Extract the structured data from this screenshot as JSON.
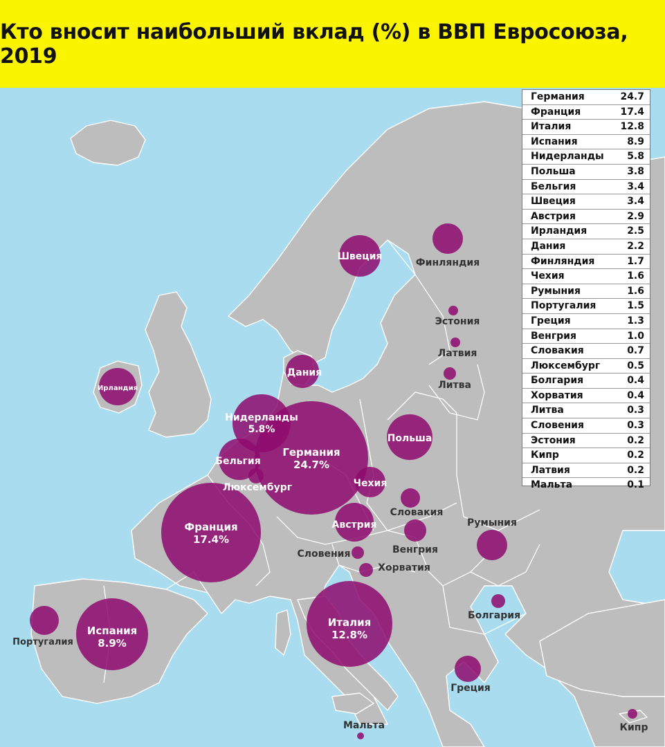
{
  "title": "Кто вносит наибольший вклад (%) в ВВП Евросоюза, 2019",
  "ranking": [
    {
      "country": "Германия",
      "value": "24.7"
    },
    {
      "country": "Франция",
      "value": "17.4"
    },
    {
      "country": "Италия",
      "value": "12.8"
    },
    {
      "country": "Испания",
      "value": "8.9"
    },
    {
      "country": "Нидерланды",
      "value": "5.8"
    },
    {
      "country": "Польша",
      "value": "3.8"
    },
    {
      "country": "Бельгия",
      "value": "3.4"
    },
    {
      "country": "Швеция",
      "value": "3.4"
    },
    {
      "country": "Австрия",
      "value": "2.9"
    },
    {
      "country": "Ирландия",
      "value": "2.5"
    },
    {
      "country": "Дания",
      "value": "2.2"
    },
    {
      "country": "Финляндия",
      "value": "1.7"
    },
    {
      "country": "Чехия",
      "value": "1.6"
    },
    {
      "country": "Румыния",
      "value": "1.6"
    },
    {
      "country": "Португалия",
      "value": "1.5"
    },
    {
      "country": "Греция",
      "value": "1.3"
    },
    {
      "country": "Венгрия",
      "value": "1.0"
    },
    {
      "country": "Словакия",
      "value": "0.7"
    },
    {
      "country": "Люксембург",
      "value": "0.5"
    },
    {
      "country": "Болгария",
      "value": "0.4"
    },
    {
      "country": "Хорватия",
      "value": "0.4"
    },
    {
      "country": "Литва",
      "value": "0.3"
    },
    {
      "country": "Словения",
      "value": "0.3"
    },
    {
      "country": "Эстония",
      "value": "0.2"
    },
    {
      "country": "Кипр",
      "value": "0.2"
    },
    {
      "country": "Латвия",
      "value": "0.2"
    },
    {
      "country": "Мальта",
      "value": "0.1"
    }
  ],
  "map_labels": {
    "germany": {
      "name": "Германия",
      "pct": "24.7%"
    },
    "france": {
      "name": "Франция",
      "pct": "17.4%"
    },
    "italy": {
      "name": "Италия",
      "pct": "12.8%"
    },
    "spain": {
      "name": "Испания",
      "pct": "8.9%"
    },
    "netherlands": {
      "name": "Нидерланды",
      "pct": "5.8%"
    },
    "poland": "Польша",
    "belgium": "Бельгия",
    "sweden": "Швеция",
    "austria": "Австрия",
    "ireland": "Ирландия",
    "denmark": "Дания",
    "finland": "Финляндия",
    "czechia": "Чехия",
    "romania": "Румыния",
    "portugal": "Португалия",
    "greece": "Греция",
    "hungary": "Венгрия",
    "slovakia": "Словакия",
    "luxembourg": "Люксембург",
    "bulgaria": "Болгария",
    "croatia": "Хорватия",
    "lithuania": "Литва",
    "slovenia": "Словения",
    "estonia": "Эстония",
    "cyprus": "Кипр",
    "latvia": "Латвия",
    "malta": "Мальта"
  },
  "colors": {
    "title_bg": "#fbf400",
    "sea": "#a9dcef",
    "land": "#bdbdbd",
    "bubble": "#8e0a6f"
  }
}
